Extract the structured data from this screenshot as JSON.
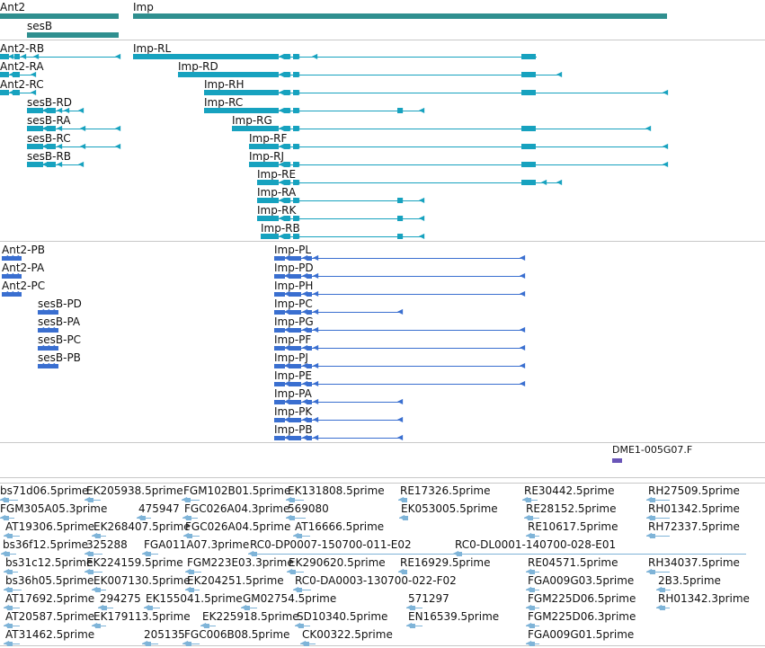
{
  "colors": {
    "gene": "#2f8f8f",
    "transcript": "#17a2bf",
    "cds": "#3a6fd0",
    "est": "#7fb4d8",
    "clone": "#6a55b8",
    "separator": "#c8c8c8"
  },
  "tracks": {
    "genes": {
      "labels": [
        "Ant2",
        "sesB",
        "Imp"
      ]
    },
    "transcripts": {
      "labels": [
        "Ant2-RB",
        "Ant2-RA",
        "Ant2-RC",
        "sesB-RD",
        "sesB-RA",
        "sesB-RC",
        "sesB-RB",
        "Imp-RL",
        "Imp-RD",
        "Imp-RH",
        "Imp-RC",
        "Imp-RG",
        "Imp-RF",
        "Imp-RJ",
        "Imp-RE",
        "Imp-RA",
        "Imp-RK",
        "Imp-RB"
      ]
    },
    "cds": {
      "labels": [
        "Ant2-PB",
        "Ant2-PA",
        "Ant2-PC",
        "sesB-PD",
        "sesB-PA",
        "sesB-PC",
        "sesB-PB",
        "Imp-PL",
        "Imp-PD",
        "Imp-PH",
        "Imp-PC",
        "Imp-PG",
        "Imp-PF",
        "Imp-PJ",
        "Imp-PE",
        "Imp-PA",
        "Imp-PK",
        "Imp-PB"
      ]
    },
    "clones": {
      "labels": [
        "DME1-005G07.F"
      ]
    },
    "ests": {
      "labels": [
        "bs71d06.5prime",
        "EK205938.5prime",
        "FGM102B01.5prime",
        "EK131808.5prime",
        "RE17326.5prime",
        "RE30442.5prime",
        "RH27509.5prime",
        "FGM305A05.3prime",
        "475947",
        "FGC026A04.3prime",
        "569080",
        "EK053005.5prime",
        "RE28152.5prime",
        "RH01342.5prime",
        "AT19306.5prime",
        "EK268407.5prime",
        "FGC026A04.5prime",
        "AT16666.5prime",
        "RE10617.5prime",
        "RH72337.5prime",
        "bs36f12.5prime",
        "325288",
        "FGA011A07.3prime",
        "RC0-DP0007-150700-011-E02",
        "RC0-DL0001-140700-028-E01",
        "bs31c12.5prime",
        "EK224159.5prime",
        "FGM223E03.3prime",
        "EK290620.5prime",
        "RE16929.5prime",
        "RE04571.5prime",
        "RH34037.5prime",
        "bs36h05.5prime",
        "EK007130.5prime",
        "EK204251.5prime",
        "RC0-DA0003-130700-022-F02",
        "FGA009G03.5prime",
        "2B3.5prime",
        "AT17692.5prime",
        "294275",
        "EK155041.5prime",
        "GM02754.5prime",
        "571297",
        "FGM225D06.5prime",
        "RH01342.3prime",
        "AT20587.5prime",
        "EK179113.5prime",
        "EK225918.5prime",
        "SD10340.5prime",
        "EN16539.5prime",
        "FGM225D06.3prime",
        "AT31462.5prime",
        "205135",
        "FGC006B08.5prime",
        "CK00322.5prime",
        "FGA009G01.5prime"
      ]
    }
  }
}
